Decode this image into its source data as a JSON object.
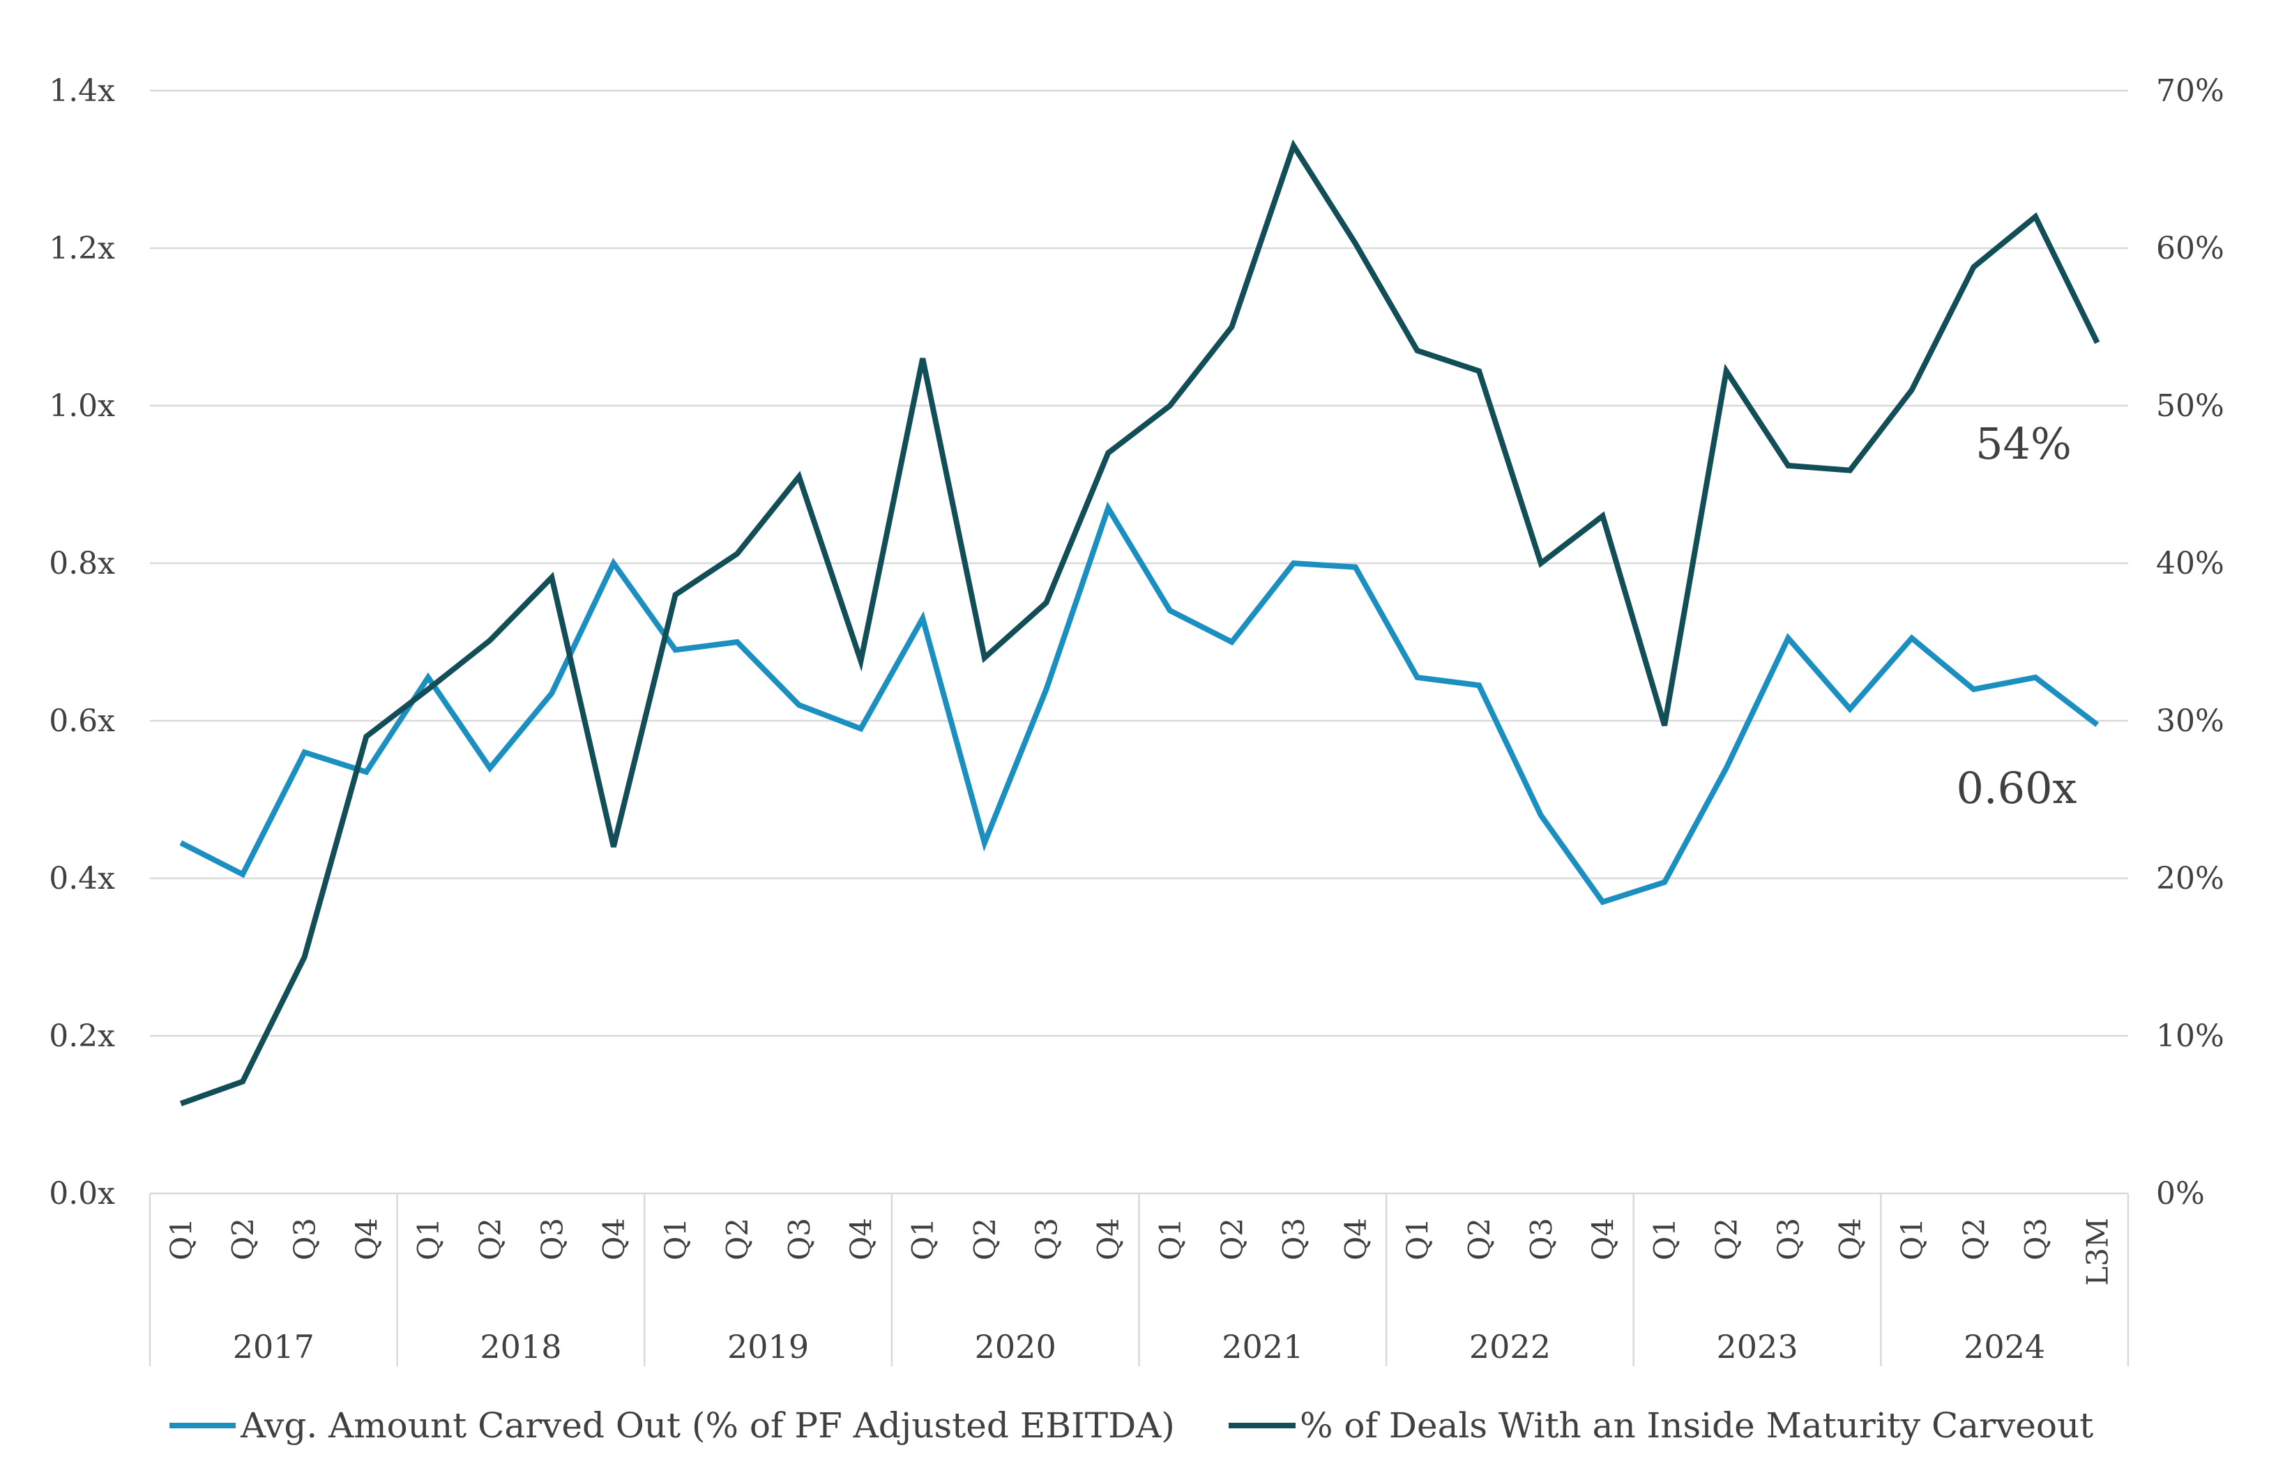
{
  "chart_data": {
    "type": "line",
    "title": "",
    "categories": [
      "Q1",
      "Q2",
      "Q3",
      "Q4",
      "Q1",
      "Q2",
      "Q3",
      "Q4",
      "Q1",
      "Q2",
      "Q3",
      "Q4",
      "Q1",
      "Q2",
      "Q3",
      "Q4",
      "Q1",
      "Q2",
      "Q3",
      "Q4",
      "Q1",
      "Q2",
      "Q3",
      "Q4",
      "Q1",
      "Q2",
      "Q3",
      "Q4",
      "Q1",
      "Q2",
      "Q3",
      "L3M"
    ],
    "years": [
      "2017",
      "2018",
      "2019",
      "2020",
      "2021",
      "2022",
      "2023",
      "2024"
    ],
    "y_left": {
      "ylim": [
        0,
        1.4
      ],
      "ticks": [
        "0.0x",
        "0.2x",
        "0.4x",
        "0.6x",
        "0.8x",
        "1.0x",
        "1.2x",
        "1.4x"
      ]
    },
    "y_right": {
      "ylim": [
        0,
        70
      ],
      "ticks": [
        "0%",
        "10%",
        "20%",
        "30%",
        "40%",
        "50%",
        "60%",
        "70%"
      ]
    },
    "series": [
      {
        "name": "Avg. Amount Carved Out (% of PF Adjusted EBITDA)",
        "axis": "left",
        "color": "#1A8FC0",
        "values": [
          0.445,
          0.405,
          0.56,
          0.535,
          0.655,
          0.54,
          0.635,
          0.8,
          0.69,
          0.7,
          0.62,
          0.59,
          0.73,
          0.445,
          0.64,
          0.87,
          0.74,
          0.7,
          0.8,
          0.795,
          0.655,
          0.645,
          0.48,
          0.37,
          0.395,
          0.54,
          0.705,
          0.615,
          0.705,
          0.64,
          0.655,
          0.595
        ],
        "end_label": "0.60x"
      },
      {
        "name": "% of Deals With an Inside Maturity Carveout",
        "axis": "right",
        "color": "#124E57",
        "values": [
          5.7,
          7.1,
          15,
          29,
          32,
          35.1,
          39.1,
          22,
          38,
          40.6,
          45.5,
          33.8,
          53,
          34,
          37.5,
          47,
          50,
          55,
          66.5,
          60.3,
          53.5,
          52.2,
          40,
          43,
          29.7,
          52.2,
          46.2,
          45.9,
          51,
          58.8,
          62,
          54
        ],
        "end_label": "54%"
      }
    ],
    "grid": true,
    "legend": "bottom"
  }
}
